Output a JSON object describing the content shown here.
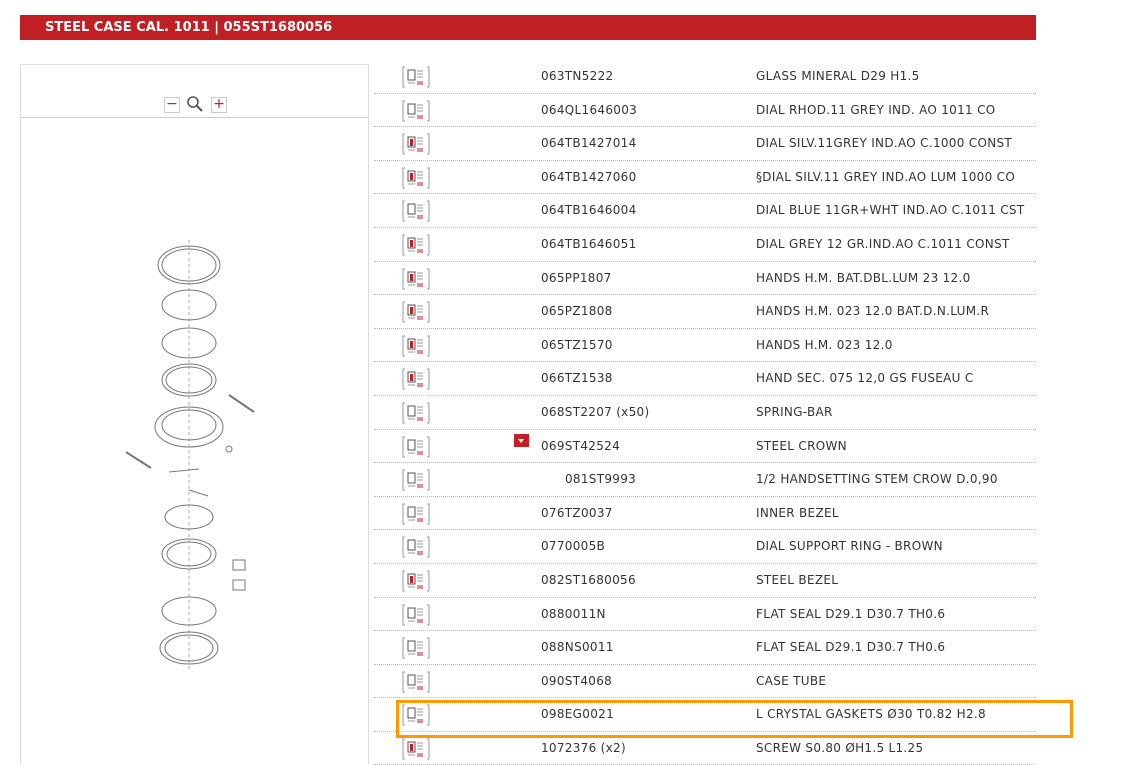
{
  "header": {
    "title": "STEEL CASE CAL. 1011  |  055ST1680056"
  },
  "viewer": {
    "zoom_out": "−",
    "zoom_in": "+"
  },
  "colors": {
    "brand": "#c01f24",
    "highlight": "#ff9900"
  },
  "parts": [
    {
      "part": "063TN5222",
      "description": "GLASS MINERAL D29 H1.5",
      "photo": false
    },
    {
      "part": "064QL1646003",
      "description": "DIAL RHOD.11 GREY IND. AO 1011 CO",
      "photo": false
    },
    {
      "part": "064TB1427014",
      "description": "DIAL SILV.11GREY IND.AO C.1000 CONST",
      "photo": true
    },
    {
      "part": "064TB1427060",
      "description": "§DIAL SILV.11 GREY IND.AO LUM 1000 CO",
      "photo": true
    },
    {
      "part": "064TB1646004",
      "description": "DIAL BLUE 11GR+WHT IND.AO C.1011 CST",
      "photo": false
    },
    {
      "part": "064TB1646051",
      "description": "DIAL GREY 12 GR.IND.AO C.1011 CONST",
      "photo": true
    },
    {
      "part": "065PP1807",
      "description": "HANDS H.M. BAT.DBL.LUM 23 12.0",
      "photo": true
    },
    {
      "part": "065PZ1808",
      "description": "HANDS H.M. 023 12.0 BAT.D.N.LUM.R",
      "photo": true
    },
    {
      "part": "065TZ1570",
      "description": "HANDS H.M. 023 12.0",
      "photo": true
    },
    {
      "part": "066TZ1538",
      "description": "HAND SEC. 075 12,0 GS FUSEAU C",
      "photo": true
    },
    {
      "part": "068ST2207 (x50)",
      "description": "SPRING-BAR",
      "photo": false
    },
    {
      "part": "069ST42524",
      "description": "STEEL CROWN",
      "photo": false,
      "expandable": true
    },
    {
      "part": "081ST9993",
      "description": "1/2 HANDSETTING STEM CROW D.0,90",
      "photo": false,
      "child": true
    },
    {
      "part": "076TZ0037",
      "description": "INNER BEZEL",
      "photo": false
    },
    {
      "part": "0770005B",
      "description": "DIAL SUPPORT RING - BROWN",
      "photo": false
    },
    {
      "part": "082ST1680056",
      "description": "STEEL BEZEL",
      "photo": true
    },
    {
      "part": "0880011N",
      "description": "FLAT SEAL D29.1 D30.7 TH0.6",
      "photo": false
    },
    {
      "part": "088NS0011",
      "description": "FLAT SEAL D29.1 D30.7 TH0.6",
      "photo": false
    },
    {
      "part": "090ST4068",
      "description": "CASE TUBE",
      "photo": false
    },
    {
      "part": "098EG0021",
      "description": "L CRYSTAL GASKETS Ø30 T0.82 H2.8",
      "photo": false,
      "highlighted": true
    },
    {
      "part": "1072376 (x2)",
      "description": "SCREW S0.80 ØH1.5 L1.25",
      "photo": true
    }
  ]
}
